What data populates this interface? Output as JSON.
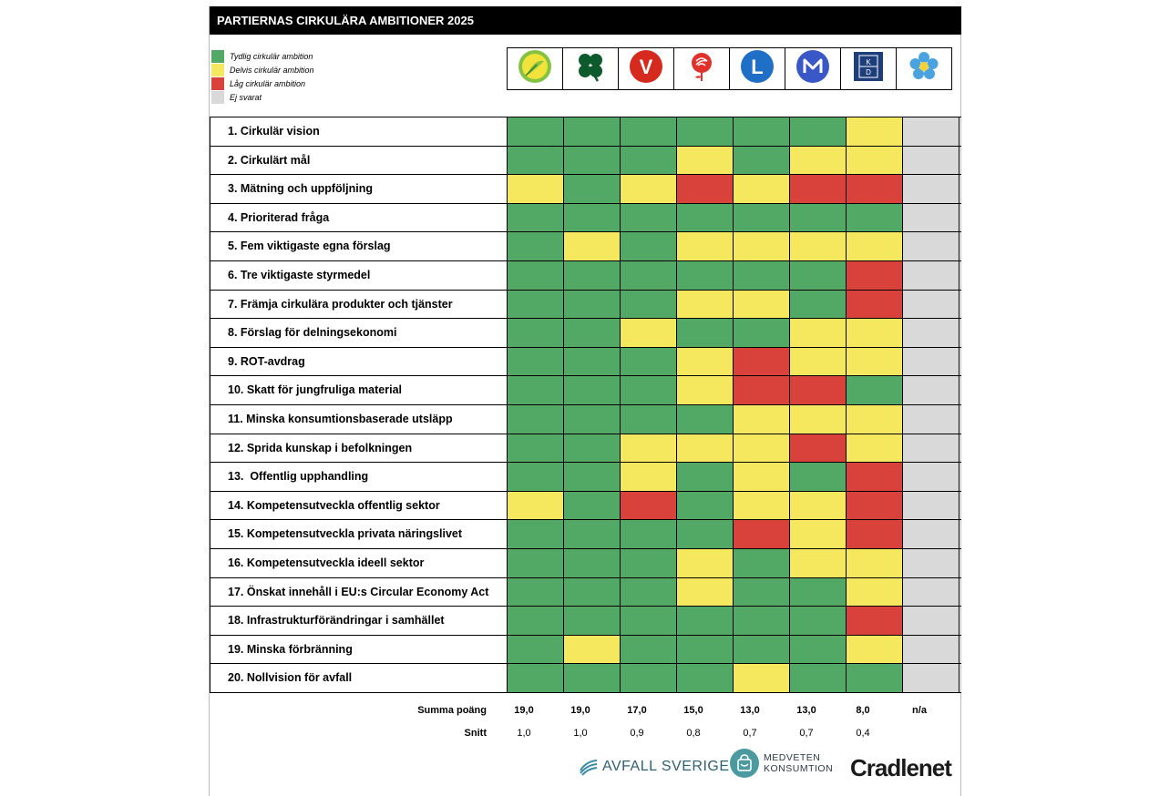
{
  "title": "PARTIERNAS CIRKULÄRA AMBITIONER 2025",
  "colors": {
    "G": "#52a865",
    "Y": "#f5e85e",
    "R": "#d9423a",
    "N": "#d9d9d9"
  },
  "legend": [
    {
      "code": "G",
      "label": "Tydlig cirkulär ambition"
    },
    {
      "code": "Y",
      "label": "Delvis cirkulär ambition"
    },
    {
      "code": "R",
      "label": "Låg cirkulär ambition"
    },
    {
      "code": "N",
      "label": "Ej svarat"
    }
  ],
  "parties": [
    {
      "icon": "miljopartiet-logo-icon"
    },
    {
      "icon": "centerpartiet-logo-icon"
    },
    {
      "icon": "vansterpartiet-logo-icon",
      "text": "V"
    },
    {
      "icon": "socialdemokraterna-rose-icon"
    },
    {
      "icon": "liberalerna-logo-icon",
      "text": "L"
    },
    {
      "icon": "moderaterna-logo-icon",
      "text": "M"
    },
    {
      "icon": "kristdemokraterna-logo-icon",
      "text": "K\nD"
    },
    {
      "icon": "sverigedemokraterna-flower-icon"
    }
  ],
  "rows": [
    {
      "label": "1. Cirkulär vision",
      "cells": [
        "G",
        "G",
        "G",
        "G",
        "G",
        "G",
        "Y",
        "N"
      ]
    },
    {
      "label": "2. Cirkulärt mål",
      "cells": [
        "G",
        "G",
        "G",
        "Y",
        "G",
        "Y",
        "Y",
        "N"
      ]
    },
    {
      "label": "3. Mätning och uppföljning",
      "cells": [
        "Y",
        "G",
        "Y",
        "R",
        "Y",
        "R",
        "R",
        "N"
      ]
    },
    {
      "label": "4. Prioriterad fråga",
      "cells": [
        "G",
        "G",
        "G",
        "G",
        "G",
        "G",
        "G",
        "N"
      ]
    },
    {
      "label": "5. Fem viktigaste egna förslag",
      "cells": [
        "G",
        "Y",
        "G",
        "Y",
        "Y",
        "Y",
        "Y",
        "N"
      ]
    },
    {
      "label": "6. Tre viktigaste styrmedel",
      "cells": [
        "G",
        "G",
        "G",
        "G",
        "G",
        "G",
        "R",
        "N"
      ]
    },
    {
      "label": "7. Främja cirkulära produkter och tjänster",
      "cells": [
        "G",
        "G",
        "G",
        "Y",
        "Y",
        "G",
        "R",
        "N"
      ]
    },
    {
      "label": "8. Förslag för delningsekonomi",
      "cells": [
        "G",
        "G",
        "Y",
        "G",
        "G",
        "Y",
        "Y",
        "N"
      ]
    },
    {
      "label": "9. ROT-avdrag",
      "cells": [
        "G",
        "G",
        "G",
        "Y",
        "R",
        "Y",
        "Y",
        "N"
      ]
    },
    {
      "label": "10. Skatt för jungfruliga material",
      "cells": [
        "G",
        "G",
        "G",
        "Y",
        "R",
        "R",
        "G",
        "N"
      ]
    },
    {
      "label": "11. Minska konsumtionsbaserade utsläpp",
      "cells": [
        "G",
        "G",
        "G",
        "G",
        "Y",
        "Y",
        "Y",
        "N"
      ]
    },
    {
      "label": "12. Sprida kunskap i befolkningen",
      "cells": [
        "G",
        "G",
        "Y",
        "Y",
        "Y",
        "R",
        "Y",
        "N"
      ]
    },
    {
      "label": "13.  Offentlig upphandling",
      "cells": [
        "G",
        "G",
        "Y",
        "G",
        "Y",
        "G",
        "R",
        "N"
      ]
    },
    {
      "label": "14. Kompetensutveckla offentlig sektor",
      "cells": [
        "Y",
        "G",
        "R",
        "G",
        "Y",
        "Y",
        "R",
        "N"
      ]
    },
    {
      "label": "15. Kompetensutveckla privata näringslivet",
      "cells": [
        "G",
        "G",
        "G",
        "G",
        "R",
        "Y",
        "R",
        "N"
      ]
    },
    {
      "label": "16. Kompetensutveckla ideell sektor",
      "cells": [
        "G",
        "G",
        "G",
        "Y",
        "G",
        "Y",
        "Y",
        "N"
      ]
    },
    {
      "label": "17. Önskat innehåll i EU:s Circular Economy Act",
      "cells": [
        "G",
        "G",
        "G",
        "Y",
        "G",
        "G",
        "Y",
        "N"
      ]
    },
    {
      "label": "18. Infrastrukturförändringar i samhället",
      "cells": [
        "G",
        "G",
        "G",
        "G",
        "G",
        "G",
        "R",
        "N"
      ]
    },
    {
      "label": "19. Minska förbränning",
      "cells": [
        "G",
        "Y",
        "G",
        "G",
        "G",
        "G",
        "Y",
        "N"
      ]
    },
    {
      "label": "20. Nollvision för avfall",
      "cells": [
        "G",
        "G",
        "G",
        "G",
        "Y",
        "G",
        "G",
        "N"
      ]
    }
  ],
  "totals": {
    "sum_label": "Summa poäng",
    "sum": [
      "19,0",
      "19,0",
      "17,0",
      "15,0",
      "13,0",
      "13,0",
      "8,0",
      "n/a"
    ],
    "avg_label": "Snitt",
    "avg": [
      "1,0",
      "1,0",
      "0,9",
      "0,8",
      "0,7",
      "0,7",
      "0,4",
      ""
    ]
  },
  "footer": {
    "avfall": "AVFALL SVERIGE",
    "medveten_line1": "MEDVETEN",
    "medveten_line2": "KONSUMTION",
    "cradlenet": "Cradlenet"
  }
}
